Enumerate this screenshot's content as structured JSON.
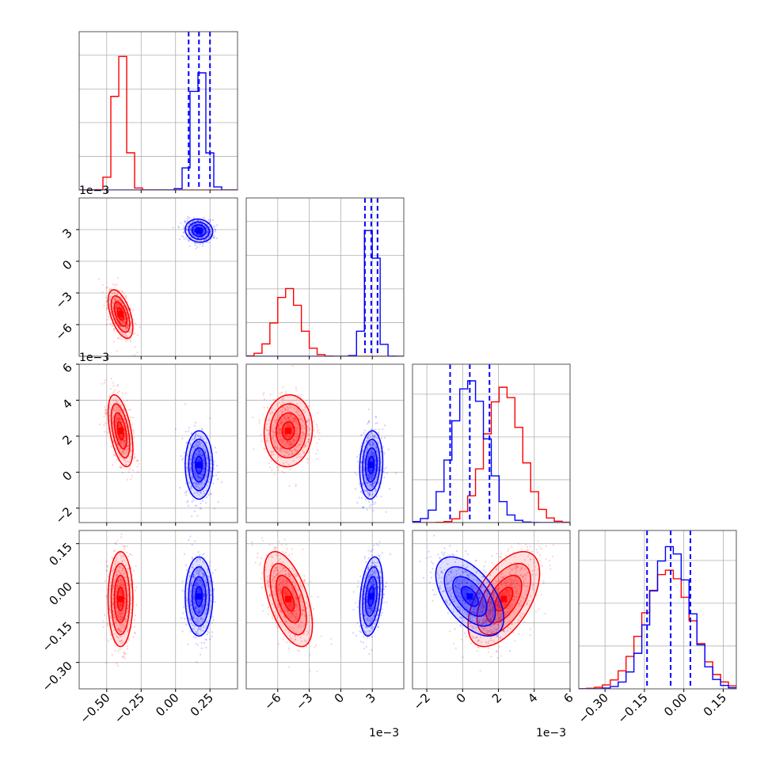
{
  "figure": {
    "colors": {
      "series_a": "#ff0000",
      "series_b": "#0000ff",
      "grid": "#b0b0b0",
      "frame": "#555555"
    }
  },
  "chart_data": {
    "type": "corner",
    "grid": true,
    "dims": [
      {
        "index": 0,
        "label": "",
        "offset_text": "",
        "range": [
          -0.7,
          0.45
        ],
        "ticks": [
          -0.5,
          -0.25,
          0.0,
          0.25
        ],
        "tick_labels": [
          "−0.50",
          "−0.25",
          "0.00",
          "0.25"
        ]
      },
      {
        "index": 1,
        "label": "",
        "offset_text": "1e−3",
        "range": [
          -9.0,
          6.0
        ],
        "ticks": [
          -6,
          -3,
          0,
          3
        ],
        "tick_labels": [
          "−6",
          "−3",
          "0",
          "3"
        ]
      },
      {
        "index": 2,
        "label": "",
        "offset_text": "1e−3",
        "range": [
          -2.8,
          6.0
        ],
        "ticks": [
          -2,
          0,
          2,
          4,
          6
        ],
        "tick_labels": [
          "−2",
          "0",
          "2",
          "4",
          "6"
        ]
      },
      {
        "index": 3,
        "label": "",
        "offset_text": "",
        "range": [
          -0.4,
          0.2
        ],
        "ticks": [
          -0.3,
          -0.15,
          0.0,
          0.15
        ],
        "tick_labels": [
          "−0.30",
          "−0.15",
          "0.00",
          "0.15"
        ]
      }
    ],
    "series": [
      {
        "name": "",
        "color": "#ff0000",
        "mean": [
          -0.4,
          -5.0,
          2.3,
          -0.06
        ],
        "sd": [
          0.045,
          1.15,
          1.0,
          0.09
        ],
        "corr": [
          [
            1.0,
            -0.55,
            -0.5,
            0.0
          ],
          [
            -0.55,
            1.0,
            0.05,
            -0.55
          ],
          [
            -0.5,
            0.05,
            1.0,
            0.55
          ],
          [
            0.0,
            -0.55,
            0.55,
            1.0
          ]
        ]
      },
      {
        "name": "",
        "color": "#0000ff",
        "mean": [
          0.17,
          2.9,
          0.4,
          -0.05
        ],
        "sd": [
          0.05,
          0.55,
          0.95,
          0.075
        ],
        "corr": [
          [
            1.0,
            -0.1,
            0.0,
            0.0
          ],
          [
            -0.1,
            1.0,
            0.1,
            0.3
          ],
          [
            0.0,
            0.1,
            1.0,
            -0.55
          ],
          [
            0.0,
            0.3,
            -0.55,
            1.0
          ]
        ],
        "quantiles": [
          [
            0.095,
            0.17,
            0.25
          ],
          [
            2.3,
            2.9,
            3.5
          ],
          [
            -0.7,
            0.4,
            1.5
          ],
          [
            -0.14,
            -0.05,
            0.025
          ]
        ]
      }
    ],
    "contour_levels": [
      0.5,
      1.0,
      1.5,
      2.0
    ]
  }
}
